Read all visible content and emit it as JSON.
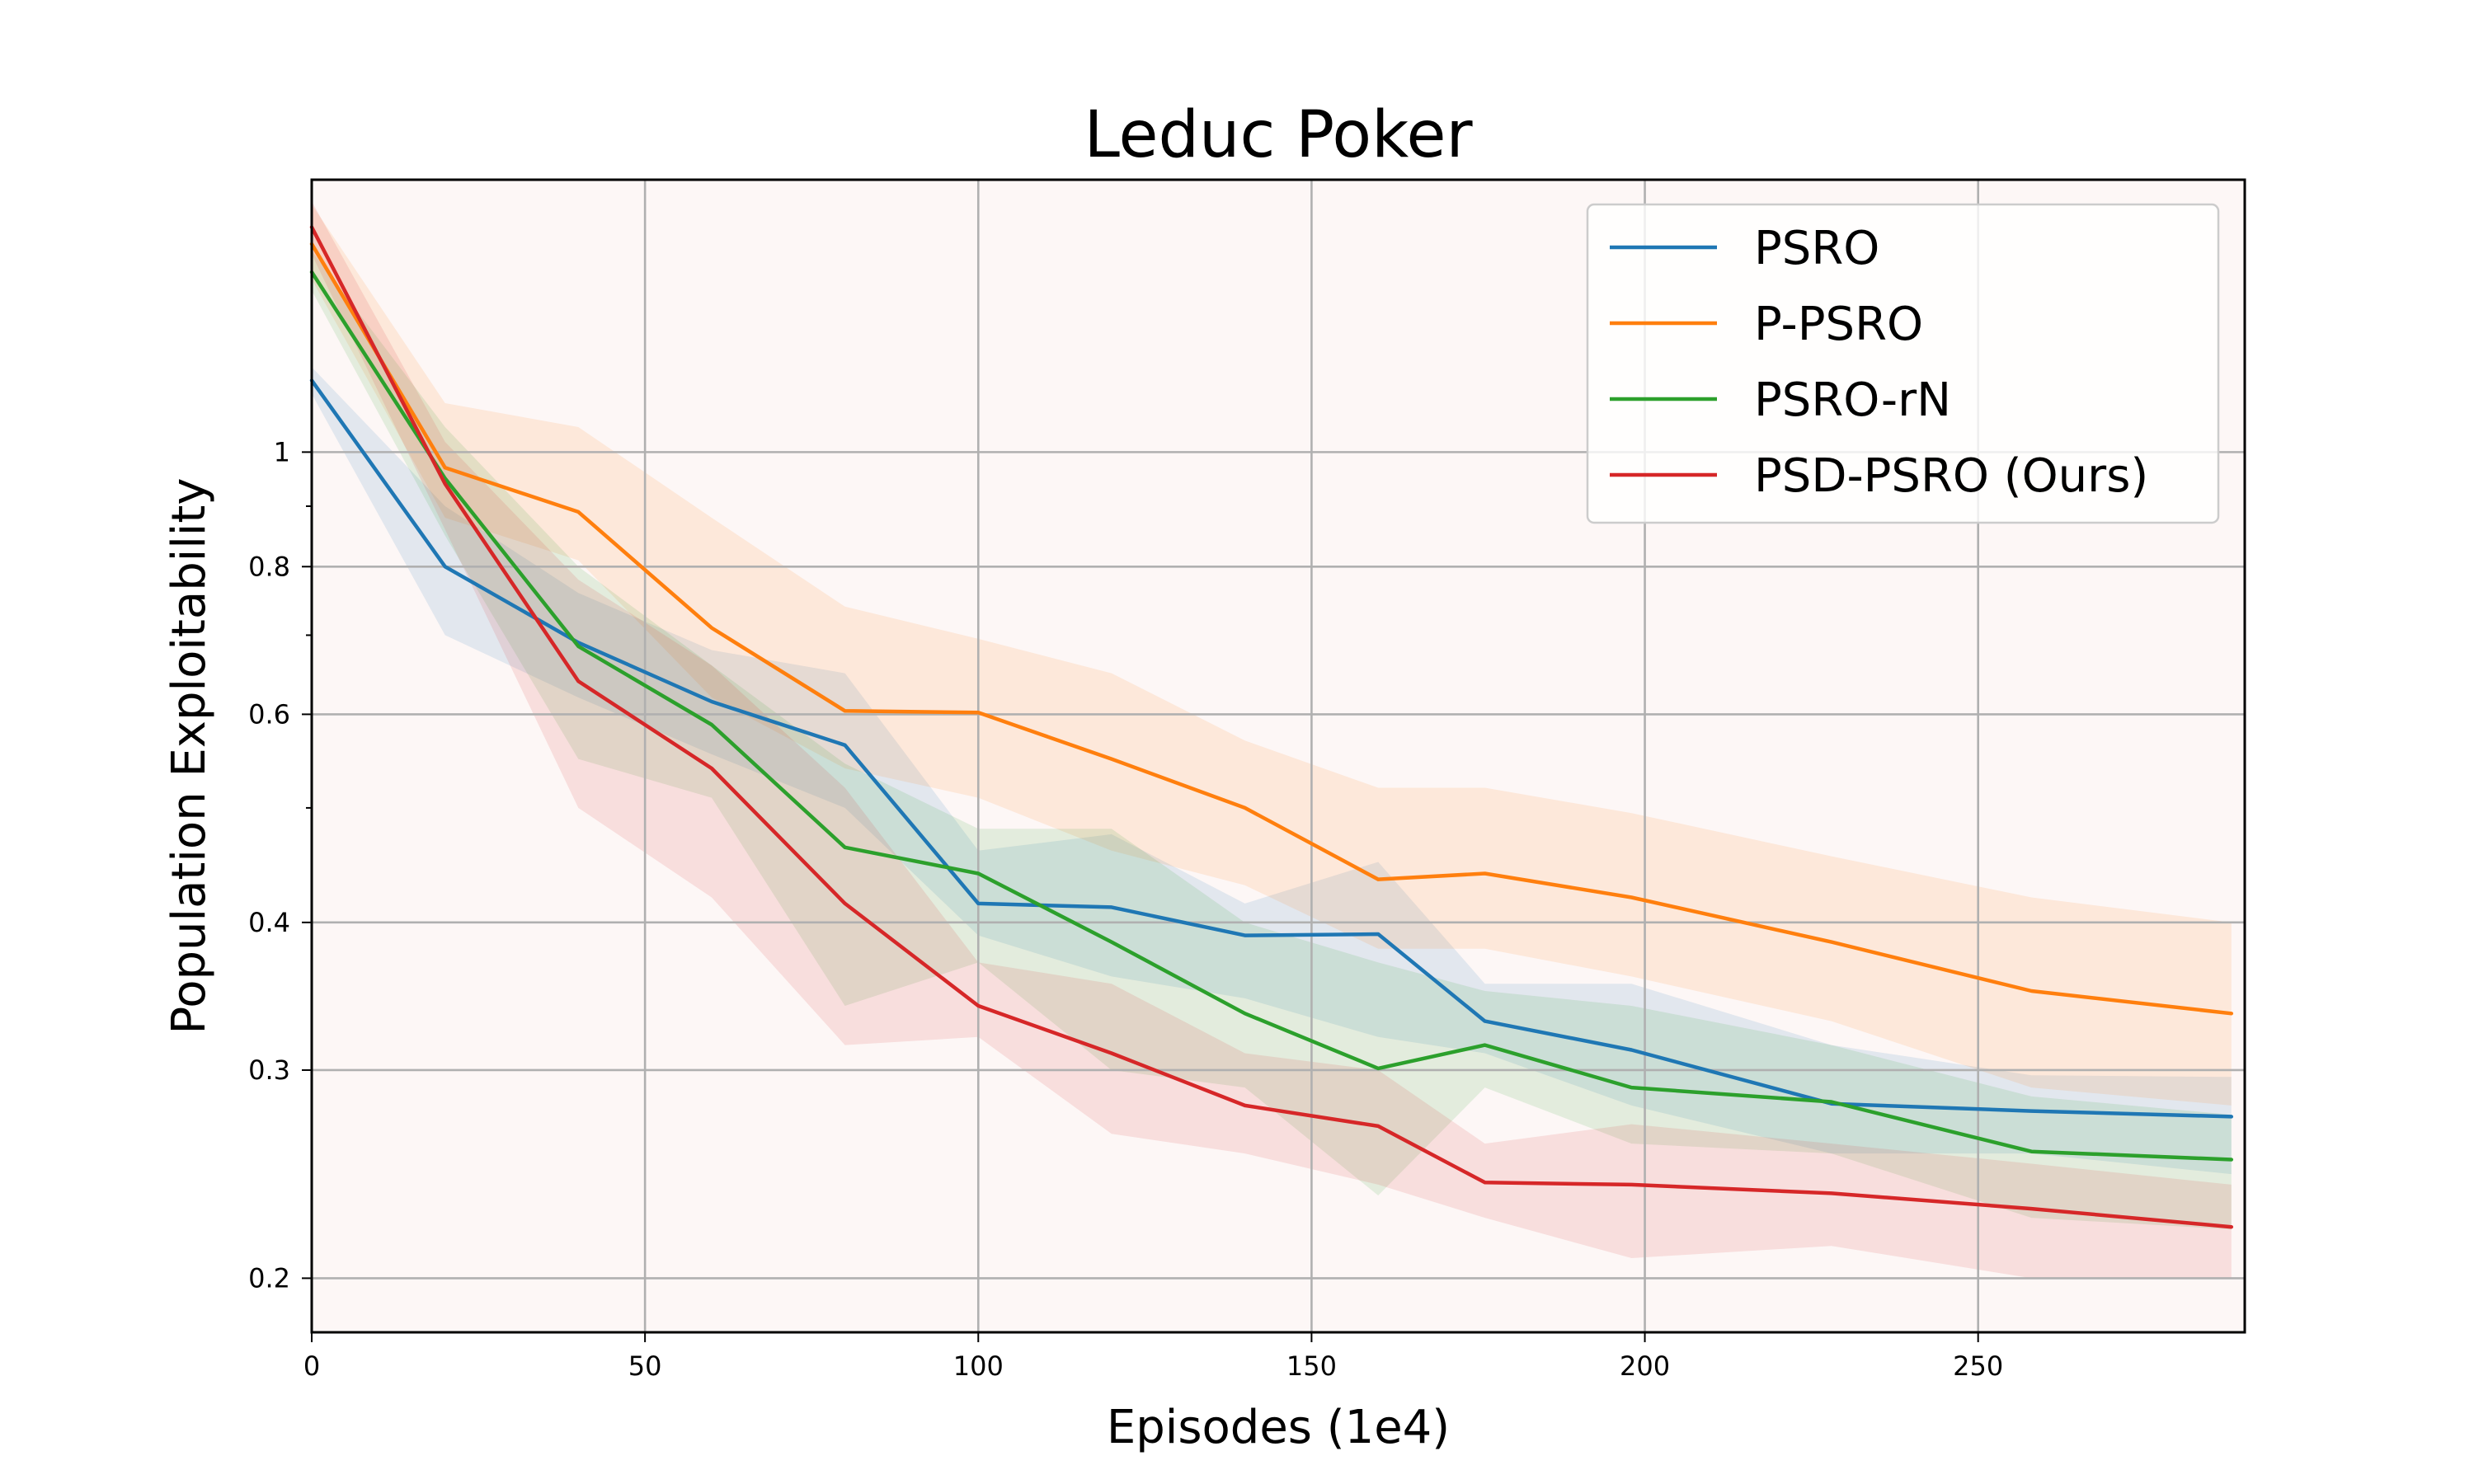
{
  "chart_data": {
    "type": "line",
    "title": "Leduc Poker",
    "xlabel": "Episodes (1e4)",
    "ylabel": "Population Exploitability",
    "yscale": "log",
    "xlim": [
      0,
      290
    ],
    "ylim": [
      0.18,
      1.7
    ],
    "grid": true,
    "legend_position": "top-right",
    "plot_background": "#fdf7f6",
    "x_ticks": [
      {
        "value": 0,
        "label": "0"
      },
      {
        "value": 50,
        "label": "50"
      },
      {
        "value": 100,
        "label": "100"
      },
      {
        "value": 150,
        "label": "150"
      },
      {
        "value": 200,
        "label": "200"
      },
      {
        "value": 250,
        "label": "250"
      }
    ],
    "y_ticks": [
      {
        "value": 0.2,
        "label": "0.2"
      },
      {
        "value": 0.3,
        "label": "0.3"
      },
      {
        "value": 0.4,
        "label": "0.4"
      },
      {
        "value": 0.6,
        "label": "0.6"
      },
      {
        "value": 0.8,
        "label": "0.8"
      },
      {
        "value": 1.0,
        "label": "1"
      }
    ],
    "y_minor_ticks": [
      0.5,
      0.7,
      0.9
    ],
    "series": [
      {
        "name": "PSRO",
        "color": "#1f77b4",
        "x": [
          0,
          20,
          40,
          60,
          80,
          100,
          120,
          140,
          160,
          176,
          198,
          228,
          258,
          288
        ],
        "values": [
          1.15,
          0.8,
          0.69,
          0.615,
          0.565,
          0.415,
          0.412,
          0.39,
          0.391,
          0.33,
          0.312,
          0.281,
          0.277,
          0.274
        ],
        "lower": [
          1.12,
          0.7,
          0.62,
          0.555,
          0.5,
          0.39,
          0.36,
          0.345,
          0.32,
          0.31,
          0.28,
          0.255,
          0.255,
          0.245
        ],
        "upper": [
          1.18,
          0.9,
          0.76,
          0.68,
          0.65,
          0.46,
          0.475,
          0.415,
          0.45,
          0.355,
          0.355,
          0.315,
          0.297,
          0.296
        ]
      },
      {
        "name": "P-PSRO",
        "color": "#ff7f0e",
        "x": [
          0,
          20,
          40,
          60,
          80,
          100,
          120,
          140,
          160,
          176,
          198,
          228,
          258,
          288
        ],
        "values": [
          1.5,
          0.97,
          0.89,
          0.71,
          0.604,
          0.602,
          0.55,
          0.5,
          0.435,
          0.44,
          0.42,
          0.385,
          0.35,
          0.335
        ],
        "lower": [
          1.4,
          0.88,
          0.81,
          0.62,
          0.54,
          0.51,
          0.46,
          0.43,
          0.38,
          0.38,
          0.36,
          0.33,
          0.29,
          0.28
        ],
        "upper": [
          1.62,
          1.1,
          1.05,
          0.88,
          0.74,
          0.695,
          0.65,
          0.57,
          0.52,
          0.52,
          0.495,
          0.455,
          0.42,
          0.4
        ]
      },
      {
        "name": "PSRO-rN",
        "color": "#2ca02c",
        "x": [
          0,
          20,
          40,
          60,
          80,
          100,
          120,
          140,
          160,
          176,
          198,
          228,
          258,
          288
        ],
        "values": [
          1.42,
          0.95,
          0.685,
          0.588,
          0.463,
          0.44,
          0.385,
          0.335,
          0.301,
          0.315,
          0.29,
          0.282,
          0.256,
          0.252
        ],
        "lower": [
          1.37,
          0.85,
          0.55,
          0.51,
          0.34,
          0.37,
          0.3,
          0.29,
          0.235,
          0.29,
          0.26,
          0.255,
          0.225,
          0.22
        ],
        "upper": [
          1.48,
          1.05,
          0.8,
          0.66,
          0.545,
          0.48,
          0.48,
          0.4,
          0.37,
          0.35,
          0.34,
          0.315,
          0.285,
          0.275
        ]
      },
      {
        "name": "PSD-PSRO (Ours)",
        "color": "#d62728",
        "x": [
          0,
          20,
          40,
          60,
          80,
          100,
          120,
          140,
          160,
          176,
          198,
          228,
          258,
          288
        ],
        "values": [
          1.55,
          0.94,
          0.64,
          0.54,
          0.415,
          0.34,
          0.31,
          0.28,
          0.269,
          0.241,
          0.24,
          0.236,
          0.229,
          0.221
        ],
        "lower": [
          1.47,
          0.86,
          0.5,
          0.42,
          0.315,
          0.32,
          0.265,
          0.255,
          0.24,
          0.225,
          0.208,
          0.213,
          0.2,
          0.2
        ],
        "upper": [
          1.63,
          1.02,
          0.78,
          0.66,
          0.52,
          0.37,
          0.355,
          0.31,
          0.3,
          0.26,
          0.27,
          0.26,
          0.25,
          0.24
        ]
      }
    ]
  }
}
